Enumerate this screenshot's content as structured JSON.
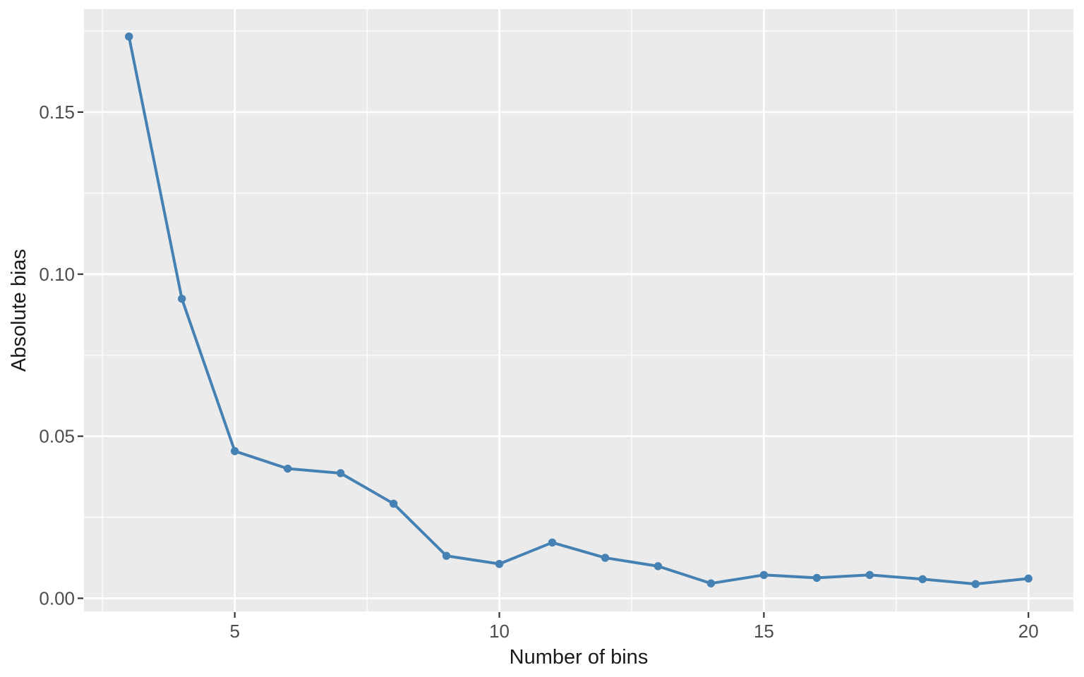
{
  "chart_data": {
    "type": "line",
    "title": "",
    "xlabel": "Number of bins",
    "ylabel": "Absolute bias",
    "x": [
      3,
      4,
      5,
      6,
      7,
      8,
      9,
      10,
      11,
      12,
      13,
      14,
      15,
      16,
      17,
      18,
      19,
      20
    ],
    "y": [
      0.1733,
      0.0924,
      0.0454,
      0.04,
      0.0386,
      0.0292,
      0.0131,
      0.0106,
      0.0172,
      0.0125,
      0.0099,
      0.0046,
      0.0072,
      0.0063,
      0.0072,
      0.0059,
      0.0044,
      0.0061
    ],
    "x_ticks": [
      5,
      10,
      15,
      20
    ],
    "x_tick_labels": [
      "5",
      "10",
      "15",
      "20"
    ],
    "y_ticks": [
      0.0,
      0.05,
      0.1,
      0.15
    ],
    "y_tick_labels": [
      "0.00",
      "0.05",
      "0.10",
      "0.15"
    ],
    "x_minor_ticks": [
      2.5,
      7.5,
      12.5,
      17.5
    ],
    "y_minor_ticks": [
      0.025,
      0.075,
      0.125,
      0.175
    ],
    "xlim": [
      2.15,
      20.85
    ],
    "ylim": [
      -0.00405,
      0.18175
    ],
    "grid": true,
    "legend": false,
    "style": {
      "panel_background": "#EBEBEB",
      "grid_color": "#FFFFFF",
      "line_color": "#4581B3",
      "point_color": "#4581B3",
      "tick_label_color": "#4D4D4D",
      "axis_title_color": "#1A1A1A",
      "tick_mark_color": "#333333",
      "outer_background": "#FFFFFF"
    }
  }
}
